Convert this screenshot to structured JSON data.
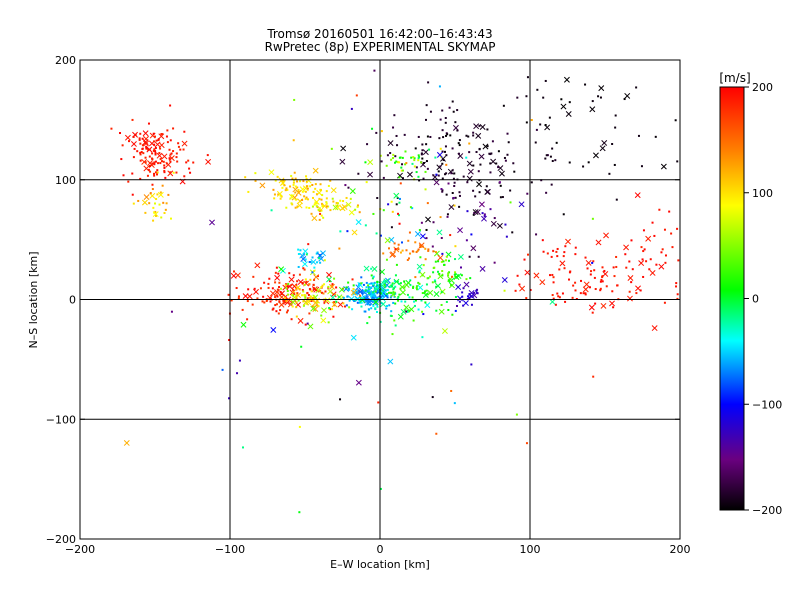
{
  "chart_data": {
    "type": "scatter",
    "title": "Tromsø 20160501 16:42:00–16:43:43",
    "subtitle": "RwPretec (8p) EXPERIMENTAL SKYMAP",
    "xlabel": "E–W location [km]",
    "ylabel": "N–S location [km]",
    "xlim": [
      -200,
      200
    ],
    "ylim": [
      -200,
      200
    ],
    "xticks": [
      -200,
      -100,
      0,
      100,
      200
    ],
    "yticks": [
      -200,
      -100,
      0,
      100,
      200
    ],
    "gridlines": {
      "x": [
        -100,
        0,
        100
      ],
      "y": [
        -100,
        0,
        100
      ]
    },
    "colorbar": {
      "label": "[m/s]",
      "range": [
        -200,
        200
      ],
      "ticks": [
        200,
        100,
        0,
        -100,
        -200
      ],
      "colors": [
        "#000000",
        "#6a0080",
        "#0000ff",
        "#00ffff",
        "#00ff00",
        "#ffff00",
        "#ff8000",
        "#ff0000"
      ]
    },
    "marker_types": [
      "small dot",
      "x cross"
    ],
    "clusters": [
      {
        "cx": -148,
        "cy": 122,
        "sx": 12,
        "sy": 12,
        "n": 140,
        "vmin": 180,
        "vmax": 200
      },
      {
        "cx": -148,
        "cy": 82,
        "sx": 6,
        "sy": 10,
        "n": 30,
        "vmin": 80,
        "vmax": 150
      },
      {
        "cx": -55,
        "cy": 92,
        "sx": 12,
        "sy": 7,
        "n": 90,
        "vmin": 80,
        "vmax": 130
      },
      {
        "cx": -35,
        "cy": 78,
        "sx": 10,
        "sy": 5,
        "n": 50,
        "vmin": 60,
        "vmax": 130
      },
      {
        "cx": -60,
        "cy": 5,
        "sx": 18,
        "sy": 10,
        "n": 150,
        "vmin": 170,
        "vmax": 200
      },
      {
        "cx": -45,
        "cy": 5,
        "sx": 10,
        "sy": 10,
        "n": 80,
        "vmin": 40,
        "vmax": 140
      },
      {
        "cx": -45,
        "cy": 35,
        "sx": 5,
        "sy": 4,
        "n": 25,
        "vmin": -80,
        "vmax": -40
      },
      {
        "cx": -5,
        "cy": 3,
        "sx": 8,
        "sy": 6,
        "n": 150,
        "vmin": -80,
        "vmax": -40
      },
      {
        "cx": 10,
        "cy": 5,
        "sx": 15,
        "sy": 10,
        "n": 130,
        "vmin": -40,
        "vmax": 40
      },
      {
        "cx": 40,
        "cy": 18,
        "sx": 10,
        "sy": 12,
        "n": 60,
        "vmin": -10,
        "vmax": 60
      },
      {
        "cx": 25,
        "cy": 40,
        "sx": 8,
        "sy": 5,
        "n": 30,
        "vmin": 120,
        "vmax": 160
      },
      {
        "cx": 58,
        "cy": 5,
        "sx": 5,
        "sy": 5,
        "n": 25,
        "vmin": -140,
        "vmax": -110
      },
      {
        "cx": 45,
        "cy": 115,
        "sx": 30,
        "sy": 25,
        "n": 170,
        "vmin": -200,
        "vmax": -175
      },
      {
        "cx": 120,
        "cy": 140,
        "sx": 35,
        "sy": 30,
        "n": 60,
        "vmin": -200,
        "vmax": -190
      },
      {
        "cx": 20,
        "cy": 115,
        "sx": 12,
        "sy": 8,
        "n": 40,
        "vmin": -20,
        "vmax": 100
      },
      {
        "cx": 145,
        "cy": 15,
        "sx": 30,
        "sy": 18,
        "n": 120,
        "vmin": 180,
        "vmax": 200
      },
      {
        "cx": 180,
        "cy": 50,
        "sx": 15,
        "sy": 20,
        "n": 25,
        "vmin": 185,
        "vmax": 200
      },
      {
        "cx": 60,
        "cy": 60,
        "sx": 20,
        "sy": 30,
        "n": 40,
        "vmin": -190,
        "vmax": -110
      },
      {
        "cx": -5,
        "cy": 60,
        "sx": 30,
        "sy": 45,
        "n": 60,
        "vmin": -120,
        "vmax": 200
      },
      {
        "cx": 0,
        "cy": 0,
        "sx": 100,
        "sy": 100,
        "n": 70,
        "vmin": -200,
        "vmax": 200
      }
    ]
  }
}
